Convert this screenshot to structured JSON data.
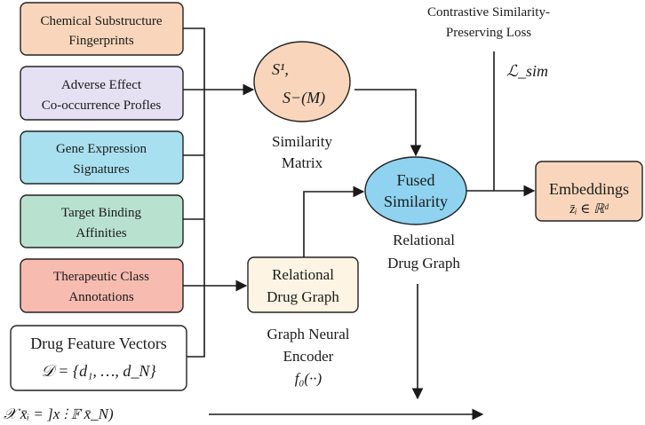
{
  "sources": [
    {
      "lines": [
        "Chemical Substructure",
        "Fingerprints"
      ],
      "color": "#f9d6bb"
    },
    {
      "lines": [
        "Adverse Effect",
        "Co-occurrence Profles"
      ],
      "color": "#e6e0f3"
    },
    {
      "lines": [
        "Gene Expression",
        "Signatures"
      ],
      "color": "#a9e0f0"
    },
    {
      "lines": [
        "Target Binding",
        "Affinities"
      ],
      "color": "#b9e1d0"
    },
    {
      "lines": [
        "Therapeutic Class",
        "Annotations"
      ],
      "color": "#f7bbb0"
    }
  ],
  "drug_features": {
    "title": "Drug Feature Vectors",
    "formula": "𝒟 = {d₁, …, d_N}",
    "color": "#ffffff"
  },
  "similarity": {
    "line1": "S¹,",
    "line2": "S−(M)",
    "caption": [
      "Similarity",
      "Matrix"
    ],
    "color": "#f9d6bb"
  },
  "fused": {
    "lines": [
      "Fused",
      "Similarity"
    ],
    "caption": [
      "Relational",
      "Drug Graph"
    ],
    "color": "#8fd3f1"
  },
  "graph_box": {
    "lines": [
      "Relational",
      "Drug Graph"
    ],
    "caption": [
      "Graph Neural",
      "Encoder",
      "f₀(··)"
    ],
    "color": "#fdf4e3"
  },
  "loss": {
    "title": [
      "Contrastive Similarity-",
      "Preserving Loss"
    ],
    "symbol": "ℒ_sim"
  },
  "embeddings": {
    "title": "Embeddings",
    "formula": "z̄ᵢ ∈ ℝᵈ",
    "color": "#f9d6bb"
  },
  "bottom_formula": "𝒳 x̄ᵢ = ]x ⫶ 𝔽    x̄_N)"
}
